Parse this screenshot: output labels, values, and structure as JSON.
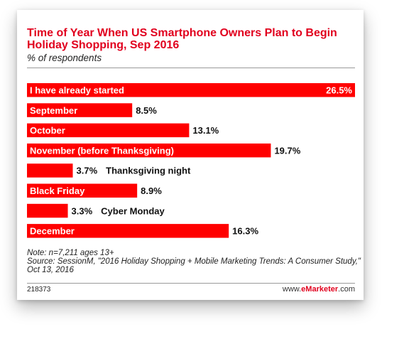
{
  "chart_data": {
    "type": "bar",
    "orientation": "horizontal",
    "title": "Time of Year When US Smartphone Owners Plan to Begin Holiday Shopping, Sep 2016",
    "subtitle": "% of respondents",
    "categories": [
      "I have already started",
      "September",
      "October",
      "November (before Thanksgiving)",
      "Thanksgiving night",
      "Black Friday",
      "Cyber Monday",
      "December"
    ],
    "values": [
      26.5,
      8.5,
      13.1,
      19.7,
      3.7,
      8.9,
      3.3,
      16.3
    ],
    "value_labels": [
      "26.5%",
      "8.5%",
      "13.1%",
      "19.7%",
      "3.7%",
      "8.9%",
      "3.3%",
      "16.3%"
    ],
    "xlim": [
      0,
      26.5
    ],
    "bar_color": "#ff0000",
    "grid": false,
    "legend": "none"
  },
  "footer": {
    "note": "Note: n=7,211 ages 13+",
    "source": "Source: SessionM, \"2016 Holiday Shopping + Mobile Marketing Trends: A Consumer Study,\" Oct 13, 2016",
    "chart_id": "218373",
    "brand_prefix": "www.",
    "brand_name": "eMarketer",
    "brand_suffix": ".com"
  },
  "colors": {
    "accent": "#e1001e",
    "bar": "#ff0000",
    "text": "#222222"
  }
}
